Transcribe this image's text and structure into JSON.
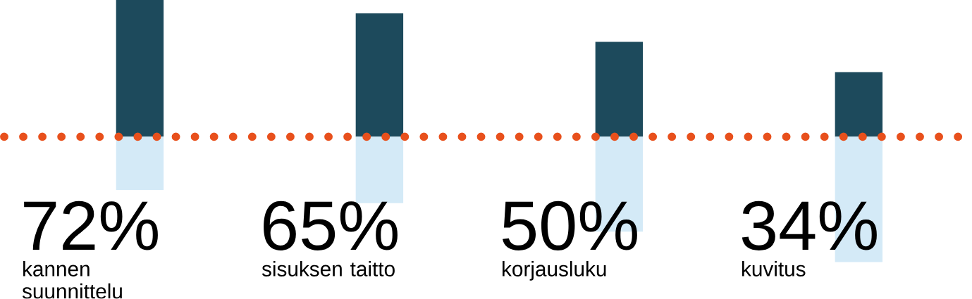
{
  "chart_data": {
    "type": "bar",
    "stacked": true,
    "categories": [
      "kannen suunnittelu",
      "sisuksen taitto",
      "korjausluku",
      "kuvitus"
    ],
    "series": [
      {
        "color": "#1d4a5c",
        "values": [
          72,
          65,
          50,
          34
        ],
        "value_labels": [
          "72%",
          "65%",
          "50%",
          "34%"
        ]
      },
      {
        "color": "#d4eaf7",
        "values": [
          -28,
          -35,
          -50,
          -66
        ]
      }
    ],
    "ref_lines": [
      {
        "axis": "y",
        "value": 0,
        "color": "#e8501c",
        "line_style": "dotted"
      }
    ]
  }
}
